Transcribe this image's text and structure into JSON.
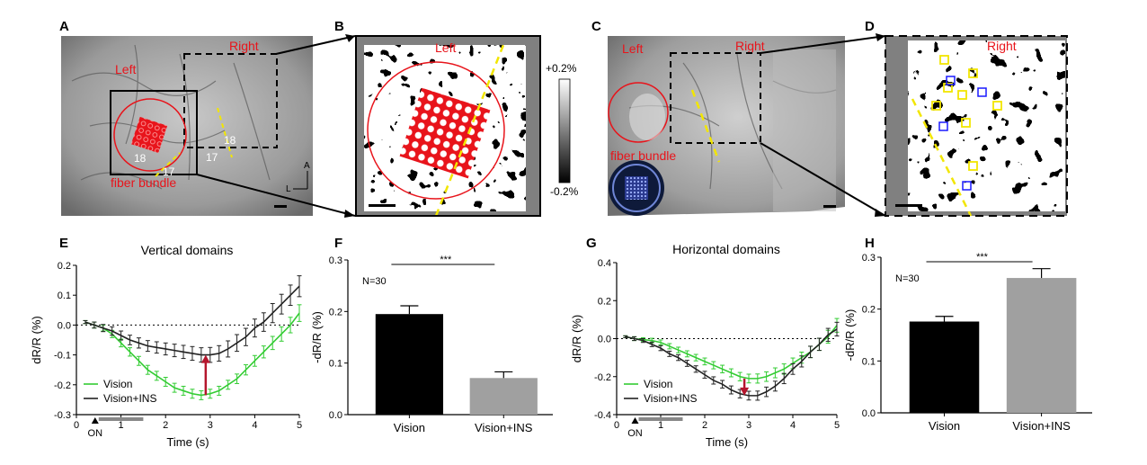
{
  "panels": {
    "A": {
      "letter": "A",
      "label_left": "Left",
      "label_right": "Right",
      "label_fiber": "fiber bundle",
      "area_18a": "18",
      "area_17a": "17",
      "area_17b": "17",
      "area_18b": "18",
      "compass_a": "A",
      "compass_l": "L"
    },
    "B": {
      "letter": "B",
      "label_left": "Left",
      "scale_top": "+0.2%",
      "scale_bottom": "-0.2%"
    },
    "C": {
      "letter": "C",
      "label_left": "Left",
      "label_right": "Right",
      "label_fiber": "fiber bundle"
    },
    "D": {
      "letter": "D",
      "label_right": "Right"
    },
    "E": {
      "letter": "E"
    },
    "F": {
      "letter": "F"
    },
    "G": {
      "letter": "G"
    },
    "H": {
      "letter": "H"
    }
  },
  "colors": {
    "vision": "#33cc33",
    "vision_ins": "#222222",
    "arrow": "#b5162d",
    "bar_vision": "#000000",
    "bar_ins": "#a0a0a0",
    "red": "#e8141b",
    "yellow": "#f2e600",
    "blue": "#1a1aff"
  },
  "chart_data": [
    {
      "id": "E",
      "type": "line",
      "title": "Vertical domains",
      "xlabel": "Time (s)",
      "ylabel": "dR/R (%)",
      "xlim": [
        0,
        5
      ],
      "ylim": [
        -0.3,
        0.2
      ],
      "xticks": [
        0,
        1,
        2,
        3,
        4,
        5
      ],
      "yticks": [
        -0.3,
        -0.2,
        -0.1,
        0.0,
        0.1,
        0.2
      ],
      "ytick_labels": [
        "-0.3",
        "-0.2",
        "-0.1",
        "0.0",
        "0.1",
        "0.2"
      ],
      "stim_label": "ON",
      "stim_range": [
        0.5,
        1.5
      ],
      "legend": "bottom-left",
      "x": [
        0.2,
        0.4,
        0.6,
        0.8,
        1.0,
        1.2,
        1.4,
        1.6,
        1.8,
        2.0,
        2.2,
        2.4,
        2.6,
        2.8,
        3.0,
        3.2,
        3.4,
        3.6,
        3.8,
        4.0,
        4.2,
        4.4,
        4.6,
        4.8,
        5.0
      ],
      "series": [
        {
          "name": "Vision",
          "color": "#33cc33",
          "values": [
            0.01,
            0.0,
            -0.01,
            -0.03,
            -0.06,
            -0.09,
            -0.12,
            -0.15,
            -0.17,
            -0.19,
            -0.21,
            -0.22,
            -0.23,
            -0.235,
            -0.23,
            -0.22,
            -0.2,
            -0.18,
            -0.15,
            -0.12,
            -0.09,
            -0.06,
            -0.03,
            0.0,
            0.04
          ],
          "err": [
            0.005,
            0.01,
            0.01,
            0.012,
            0.013,
            0.014,
            0.015,
            0.015,
            0.015,
            0.015,
            0.015,
            0.015,
            0.015,
            0.015,
            0.015,
            0.015,
            0.015,
            0.016,
            0.017,
            0.018,
            0.02,
            0.022,
            0.024,
            0.026,
            0.028
          ]
        },
        {
          "name": "Vision+INS",
          "color": "#222222",
          "values": [
            0.01,
            0.0,
            -0.01,
            -0.02,
            -0.035,
            -0.05,
            -0.06,
            -0.07,
            -0.075,
            -0.08,
            -0.085,
            -0.09,
            -0.095,
            -0.1,
            -0.1,
            -0.095,
            -0.08,
            -0.06,
            -0.04,
            -0.01,
            0.01,
            0.04,
            0.07,
            0.1,
            0.13
          ],
          "err": [
            0.005,
            0.01,
            0.012,
            0.014,
            0.015,
            0.016,
            0.017,
            0.018,
            0.019,
            0.02,
            0.021,
            0.022,
            0.023,
            0.024,
            0.025,
            0.026,
            0.027,
            0.028,
            0.029,
            0.03,
            0.031,
            0.032,
            0.033,
            0.034,
            0.035
          ]
        }
      ],
      "arrow": {
        "x": 2.9,
        "from": -0.235,
        "to": -0.1
      }
    },
    {
      "id": "F",
      "type": "bar",
      "ylabel": "-dR/R (%)",
      "ylim": [
        0,
        0.3
      ],
      "yticks": [
        0.0,
        0.1,
        0.2,
        0.3
      ],
      "ytick_labels": [
        "0.0",
        "0.1",
        "0.2",
        "0.3"
      ],
      "categories": [
        "Vision",
        "Vision+INS"
      ],
      "values": [
        0.195,
        0.071
      ],
      "err": [
        0.016,
        0.012
      ],
      "n_label": "N=30",
      "sig_label": "***"
    },
    {
      "id": "G",
      "type": "line",
      "title": "Horizontal domains",
      "xlabel": "Time (s)",
      "ylabel": "dR/R (%)",
      "xlim": [
        0,
        5
      ],
      "ylim": [
        -0.4,
        0.4
      ],
      "xticks": [
        0,
        1,
        2,
        3,
        4,
        5
      ],
      "yticks": [
        -0.4,
        -0.2,
        0.0,
        0.2,
        0.4
      ],
      "ytick_labels": [
        "-0.4",
        "-0.2",
        "0.0",
        "0.2",
        "0.4"
      ],
      "stim_label": "ON",
      "stim_range": [
        0.5,
        1.5
      ],
      "legend": "bottom-left",
      "x": [
        0.2,
        0.4,
        0.6,
        0.8,
        1.0,
        1.2,
        1.4,
        1.6,
        1.8,
        2.0,
        2.2,
        2.4,
        2.6,
        2.8,
        3.0,
        3.2,
        3.4,
        3.6,
        3.8,
        4.0,
        4.2,
        4.4,
        4.6,
        4.8,
        5.0
      ],
      "series": [
        {
          "name": "Vision",
          "color": "#33cc33",
          "values": [
            0.01,
            0.0,
            -0.005,
            -0.01,
            -0.02,
            -0.04,
            -0.06,
            -0.08,
            -0.1,
            -0.12,
            -0.14,
            -0.16,
            -0.18,
            -0.2,
            -0.21,
            -0.21,
            -0.2,
            -0.18,
            -0.16,
            -0.13,
            -0.1,
            -0.07,
            -0.03,
            0.01,
            0.07
          ],
          "err": [
            0.005,
            0.01,
            0.01,
            0.012,
            0.013,
            0.014,
            0.015,
            0.016,
            0.017,
            0.018,
            0.019,
            0.02,
            0.021,
            0.022,
            0.023,
            0.024,
            0.025,
            0.026,
            0.027,
            0.028,
            0.029,
            0.03,
            0.032,
            0.034,
            0.036
          ]
        },
        {
          "name": "Vision+INS",
          "color": "#222222",
          "values": [
            0.01,
            0.0,
            -0.01,
            -0.03,
            -0.05,
            -0.08,
            -0.1,
            -0.13,
            -0.16,
            -0.19,
            -0.22,
            -0.24,
            -0.27,
            -0.29,
            -0.3,
            -0.3,
            -0.28,
            -0.25,
            -0.21,
            -0.16,
            -0.12,
            -0.07,
            -0.03,
            0.02,
            0.05
          ],
          "err": [
            0.005,
            0.01,
            0.01,
            0.012,
            0.013,
            0.014,
            0.015,
            0.016,
            0.017,
            0.018,
            0.019,
            0.02,
            0.021,
            0.022,
            0.023,
            0.024,
            0.025,
            0.026,
            0.027,
            0.028,
            0.029,
            0.03,
            0.032,
            0.034,
            0.036
          ]
        }
      ],
      "arrow": {
        "x": 2.9,
        "from": -0.21,
        "to": -0.3
      }
    },
    {
      "id": "H",
      "type": "bar",
      "ylabel": "-dR/R (%)",
      "ylim": [
        0,
        0.3
      ],
      "yticks": [
        0.0,
        0.1,
        0.2,
        0.3
      ],
      "ytick_labels": [
        "0.0",
        "0.1",
        "0.2",
        "0.3"
      ],
      "categories": [
        "Vision",
        "Vision+INS"
      ],
      "values": [
        0.176,
        0.26
      ],
      "err": [
        0.01,
        0.018
      ],
      "n_label": "N=30",
      "sig_label": "***"
    }
  ]
}
